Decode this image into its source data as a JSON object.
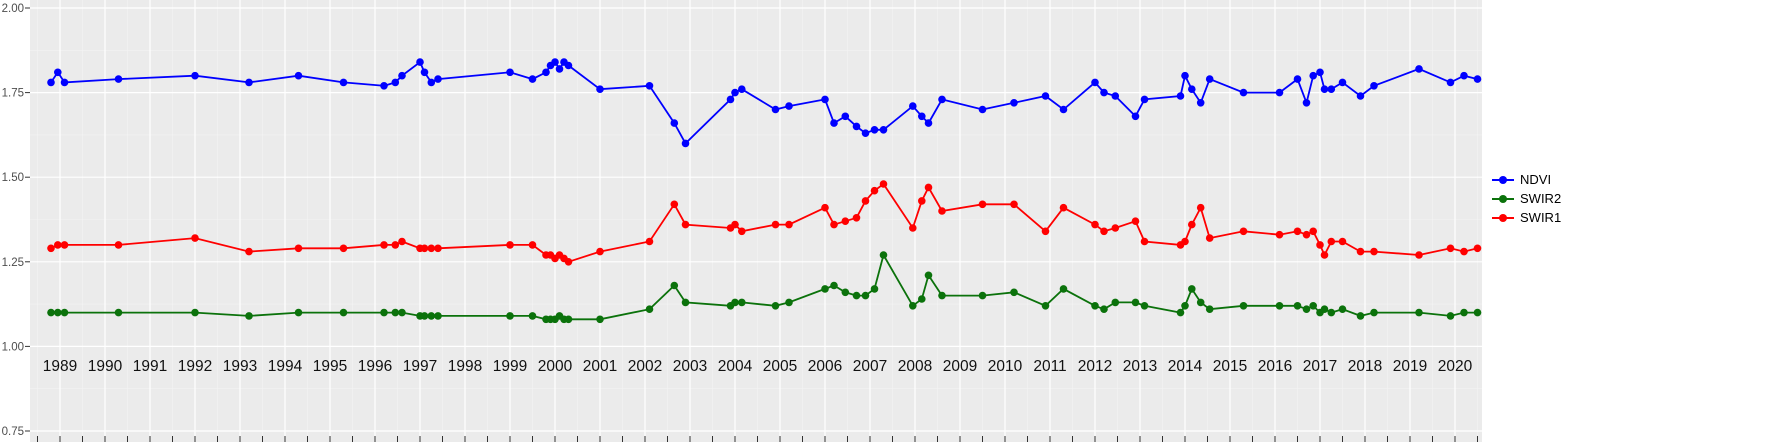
{
  "figure": {
    "background": "#FFFFFF",
    "panel_background": "#EBEBEB",
    "grid_major_color": "#FFFFFF",
    "grid_minor_color": "#F4F4F4",
    "tick_color": "#333333",
    "x_label_color": "#111111",
    "y_label_color": "#4D4D4D"
  },
  "chart_data": {
    "type": "line",
    "title": "",
    "xlabel": "",
    "ylabel": "",
    "grid": true,
    "legend_position": "right",
    "xlim": [
      1988.35,
      2020.95
    ],
    "ylim": [
      0.75,
      2.0
    ],
    "x_ticks": {
      "labels": [
        "1989",
        "1990",
        "1991",
        "1992",
        "1993",
        "1994",
        "1995",
        "1996",
        "1997",
        "1998",
        "1999",
        "2000",
        "2001",
        "2002",
        "2003",
        "2004",
        "2005",
        "2006",
        "2007",
        "2008",
        "2009",
        "2010",
        "2011",
        "2012",
        "2013",
        "2014",
        "2015",
        "2016",
        "2017",
        "2018",
        "2019",
        "2020"
      ]
    },
    "y_ticks": {
      "labels": [
        "2.00",
        "1.75",
        "1.50",
        "1.25",
        "1.00",
        "0.75"
      ],
      "values": [
        2.0,
        1.75,
        1.5,
        1.25,
        1.0,
        0.75
      ]
    },
    "x": [
      1988.8,
      1988.95,
      1989.1,
      1990.3,
      1992.0,
      1993.2,
      1994.3,
      1995.3,
      1996.2,
      1996.45,
      1996.6,
      1997.0,
      1997.1,
      1997.25,
      1997.4,
      1999.0,
      1999.5,
      1999.8,
      1999.9,
      2000.0,
      2000.1,
      2000.2,
      2000.3,
      2001.0,
      2002.1,
      2002.65,
      2002.9,
      2003.9,
      2004.0,
      2004.15,
      2004.9,
      2005.2,
      2006.0,
      2006.2,
      2006.45,
      2006.7,
      2006.9,
      2007.1,
      2007.3,
      2007.95,
      2008.15,
      2008.3,
      2008.6,
      2009.5,
      2010.2,
      2010.9,
      2011.3,
      2012.0,
      2012.2,
      2012.45,
      2012.9,
      2013.1,
      2013.9,
      2014.0,
      2014.15,
      2014.35,
      2014.55,
      2015.3,
      2016.1,
      2016.5,
      2016.7,
      2016.85,
      2017.0,
      2017.1,
      2017.25,
      2017.5,
      2017.9,
      2018.2,
      2019.2,
      2019.9,
      2020.2,
      2020.5
    ],
    "series": [
      {
        "name": "NDVI",
        "color": "#0000FF",
        "values": [
          1.78,
          1.81,
          1.78,
          1.79,
          1.8,
          1.78,
          1.8,
          1.78,
          1.77,
          1.78,
          1.8,
          1.84,
          1.81,
          1.78,
          1.79,
          1.81,
          1.79,
          1.81,
          1.83,
          1.84,
          1.82,
          1.84,
          1.83,
          1.76,
          1.77,
          1.66,
          1.6,
          1.73,
          1.75,
          1.76,
          1.7,
          1.71,
          1.73,
          1.66,
          1.68,
          1.65,
          1.63,
          1.64,
          1.64,
          1.71,
          1.68,
          1.66,
          1.73,
          1.7,
          1.72,
          1.74,
          1.7,
          1.78,
          1.75,
          1.74,
          1.68,
          1.73,
          1.74,
          1.8,
          1.76,
          1.72,
          1.79,
          1.75,
          1.75,
          1.79,
          1.72,
          1.8,
          1.81,
          1.76,
          1.76,
          1.78,
          1.74,
          1.77,
          1.82,
          1.78,
          1.8,
          1.79
        ]
      },
      {
        "name": "SWIR2",
        "color": "#0B720B",
        "values": [
          1.1,
          1.1,
          1.1,
          1.1,
          1.1,
          1.09,
          1.1,
          1.1,
          1.1,
          1.1,
          1.1,
          1.09,
          1.09,
          1.09,
          1.09,
          1.09,
          1.09,
          1.08,
          1.08,
          1.08,
          1.09,
          1.08,
          1.08,
          1.08,
          1.11,
          1.18,
          1.13,
          1.12,
          1.13,
          1.13,
          1.12,
          1.13,
          1.17,
          1.18,
          1.16,
          1.15,
          1.15,
          1.17,
          1.27,
          1.12,
          1.14,
          1.21,
          1.15,
          1.15,
          1.16,
          1.12,
          1.17,
          1.12,
          1.11,
          1.13,
          1.13,
          1.12,
          1.1,
          1.12,
          1.17,
          1.13,
          1.11,
          1.12,
          1.12,
          1.12,
          1.11,
          1.12,
          1.1,
          1.11,
          1.1,
          1.11,
          1.09,
          1.1,
          1.1,
          1.09,
          1.1,
          1.1
        ]
      },
      {
        "name": "SWIR1",
        "color": "#FF0000",
        "values": [
          1.29,
          1.3,
          1.3,
          1.3,
          1.32,
          1.28,
          1.29,
          1.29,
          1.3,
          1.3,
          1.31,
          1.29,
          1.29,
          1.29,
          1.29,
          1.3,
          1.3,
          1.27,
          1.27,
          1.26,
          1.27,
          1.26,
          1.25,
          1.28,
          1.31,
          1.42,
          1.36,
          1.35,
          1.36,
          1.34,
          1.36,
          1.36,
          1.41,
          1.36,
          1.37,
          1.38,
          1.43,
          1.46,
          1.48,
          1.35,
          1.43,
          1.47,
          1.4,
          1.42,
          1.42,
          1.34,
          1.41,
          1.36,
          1.34,
          1.35,
          1.37,
          1.31,
          1.3,
          1.31,
          1.36,
          1.41,
          1.32,
          1.34,
          1.33,
          1.34,
          1.33,
          1.34,
          1.3,
          1.27,
          1.31,
          1.31,
          1.28,
          1.28,
          1.27,
          1.29,
          1.28,
          1.29
        ]
      }
    ]
  }
}
